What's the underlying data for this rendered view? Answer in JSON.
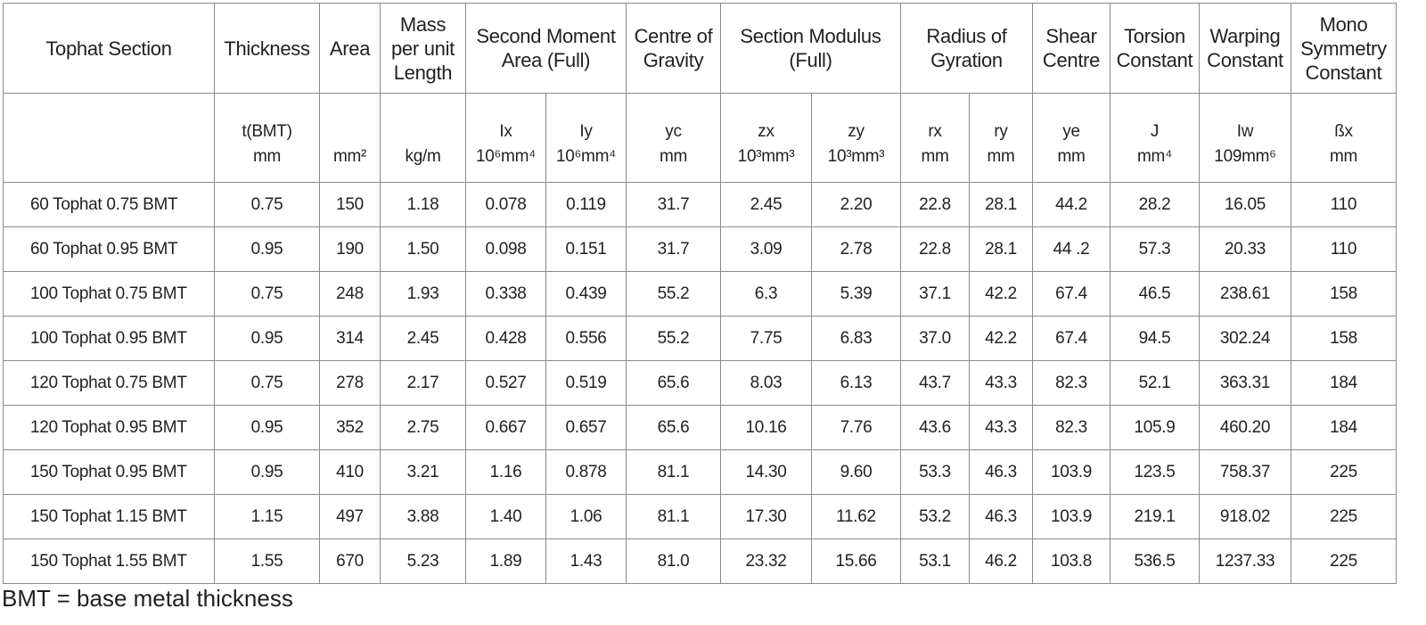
{
  "table": {
    "header": [
      {
        "text": "Tophat Section",
        "span": 1
      },
      {
        "text": "Thickness",
        "span": 1
      },
      {
        "text": "Area",
        "span": 1
      },
      {
        "text": "Mass\nper unit\nLength",
        "span": 1
      },
      {
        "text": "Second Moment\nArea (Full)",
        "span": 2
      },
      {
        "text": "Centre of\nGravity",
        "span": 1
      },
      {
        "text": "Section Modulus\n(Full)",
        "span": 2
      },
      {
        "text": "Radius of\nGyration",
        "span": 2
      },
      {
        "text": "Shear\nCentre",
        "span": 1
      },
      {
        "text": "Torsion\nConstant",
        "span": 1
      },
      {
        "text": "Warping\nConstant",
        "span": 1
      },
      {
        "text": "Mono\nSymmetry\nConstant",
        "span": 1
      }
    ],
    "units": [
      null,
      "t(BMT)\nmm",
      "mm²",
      "kg/m",
      "Ix\n10⁶mm⁴",
      "Iy\n10⁶mm⁴",
      "yc\nmm",
      "zx\n10³mm³",
      "zy\n10³mm³",
      "rx\nmm",
      "ry\nmm",
      "ye\nmm",
      "J\nmm⁴",
      "Iw\n109mm⁶",
      "ßx\nmm"
    ],
    "rows": [
      [
        "60 Tophat 0.75 BMT",
        "0.75",
        "150",
        "1.18",
        "0.078",
        "0.119",
        "31.7",
        "2.45",
        "2.20",
        "22.8",
        "28.1",
        "44.2",
        "28.2",
        "16.05",
        "110"
      ],
      [
        "60 Tophat 0.95 BMT",
        "0.95",
        "190",
        "1.50",
        "0.098",
        "0.151",
        "31.7",
        "3.09",
        "2.78",
        "22.8",
        "28.1",
        "44 .2",
        "57.3",
        "20.33",
        "110"
      ],
      [
        "100 Tophat 0.75 BMT",
        "0.75",
        "248",
        "1.93",
        "0.338",
        "0.439",
        "55.2",
        "6.3",
        "5.39",
        "37.1",
        "42.2",
        "67.4",
        "46.5",
        "238.61",
        "158"
      ],
      [
        "100 Tophat 0.95 BMT",
        "0.95",
        "314",
        "2.45",
        "0.428",
        "0.556",
        "55.2",
        "7.75",
        "6.83",
        "37.0",
        "42.2",
        "67.4",
        "94.5",
        "302.24",
        "158"
      ],
      [
        "120 Tophat 0.75 BMT",
        "0.75",
        "278",
        "2.17",
        "0.527",
        "0.519",
        "65.6",
        "8.03",
        "6.13",
        "43.7",
        "43.3",
        "82.3",
        "52.1",
        "363.31",
        "184"
      ],
      [
        "120 Tophat 0.95 BMT",
        "0.95",
        "352",
        "2.75",
        "0.667",
        "0.657",
        "65.6",
        "10.16",
        "7.76",
        "43.6",
        "43.3",
        "82.3",
        "105.9",
        "460.20",
        "184"
      ],
      [
        "150 Tophat 0.95 BMT",
        "0.95",
        "410",
        "3.21",
        "1.16",
        "0.878",
        "81.1",
        "14.30",
        "9.60",
        "53.3",
        "46.3",
        "103.9",
        "123.5",
        "758.37",
        "225"
      ],
      [
        "150 Tophat 1.15 BMT",
        "1.15",
        "497",
        "3.88",
        "1.40",
        "1.06",
        "81.1",
        "17.30",
        "11.62",
        "53.2",
        "46.3",
        "103.9",
        "219.1",
        "918.02",
        "225"
      ],
      [
        "150 Tophat 1.55 BMT",
        "1.55",
        "670",
        "5.23",
        "1.89",
        "1.43",
        "81.0",
        "23.32",
        "15.66",
        "53.1",
        "46.2",
        "103.8",
        "536.5",
        "1237.33",
        "225"
      ]
    ]
  },
  "note": "BMT = base metal thickness"
}
